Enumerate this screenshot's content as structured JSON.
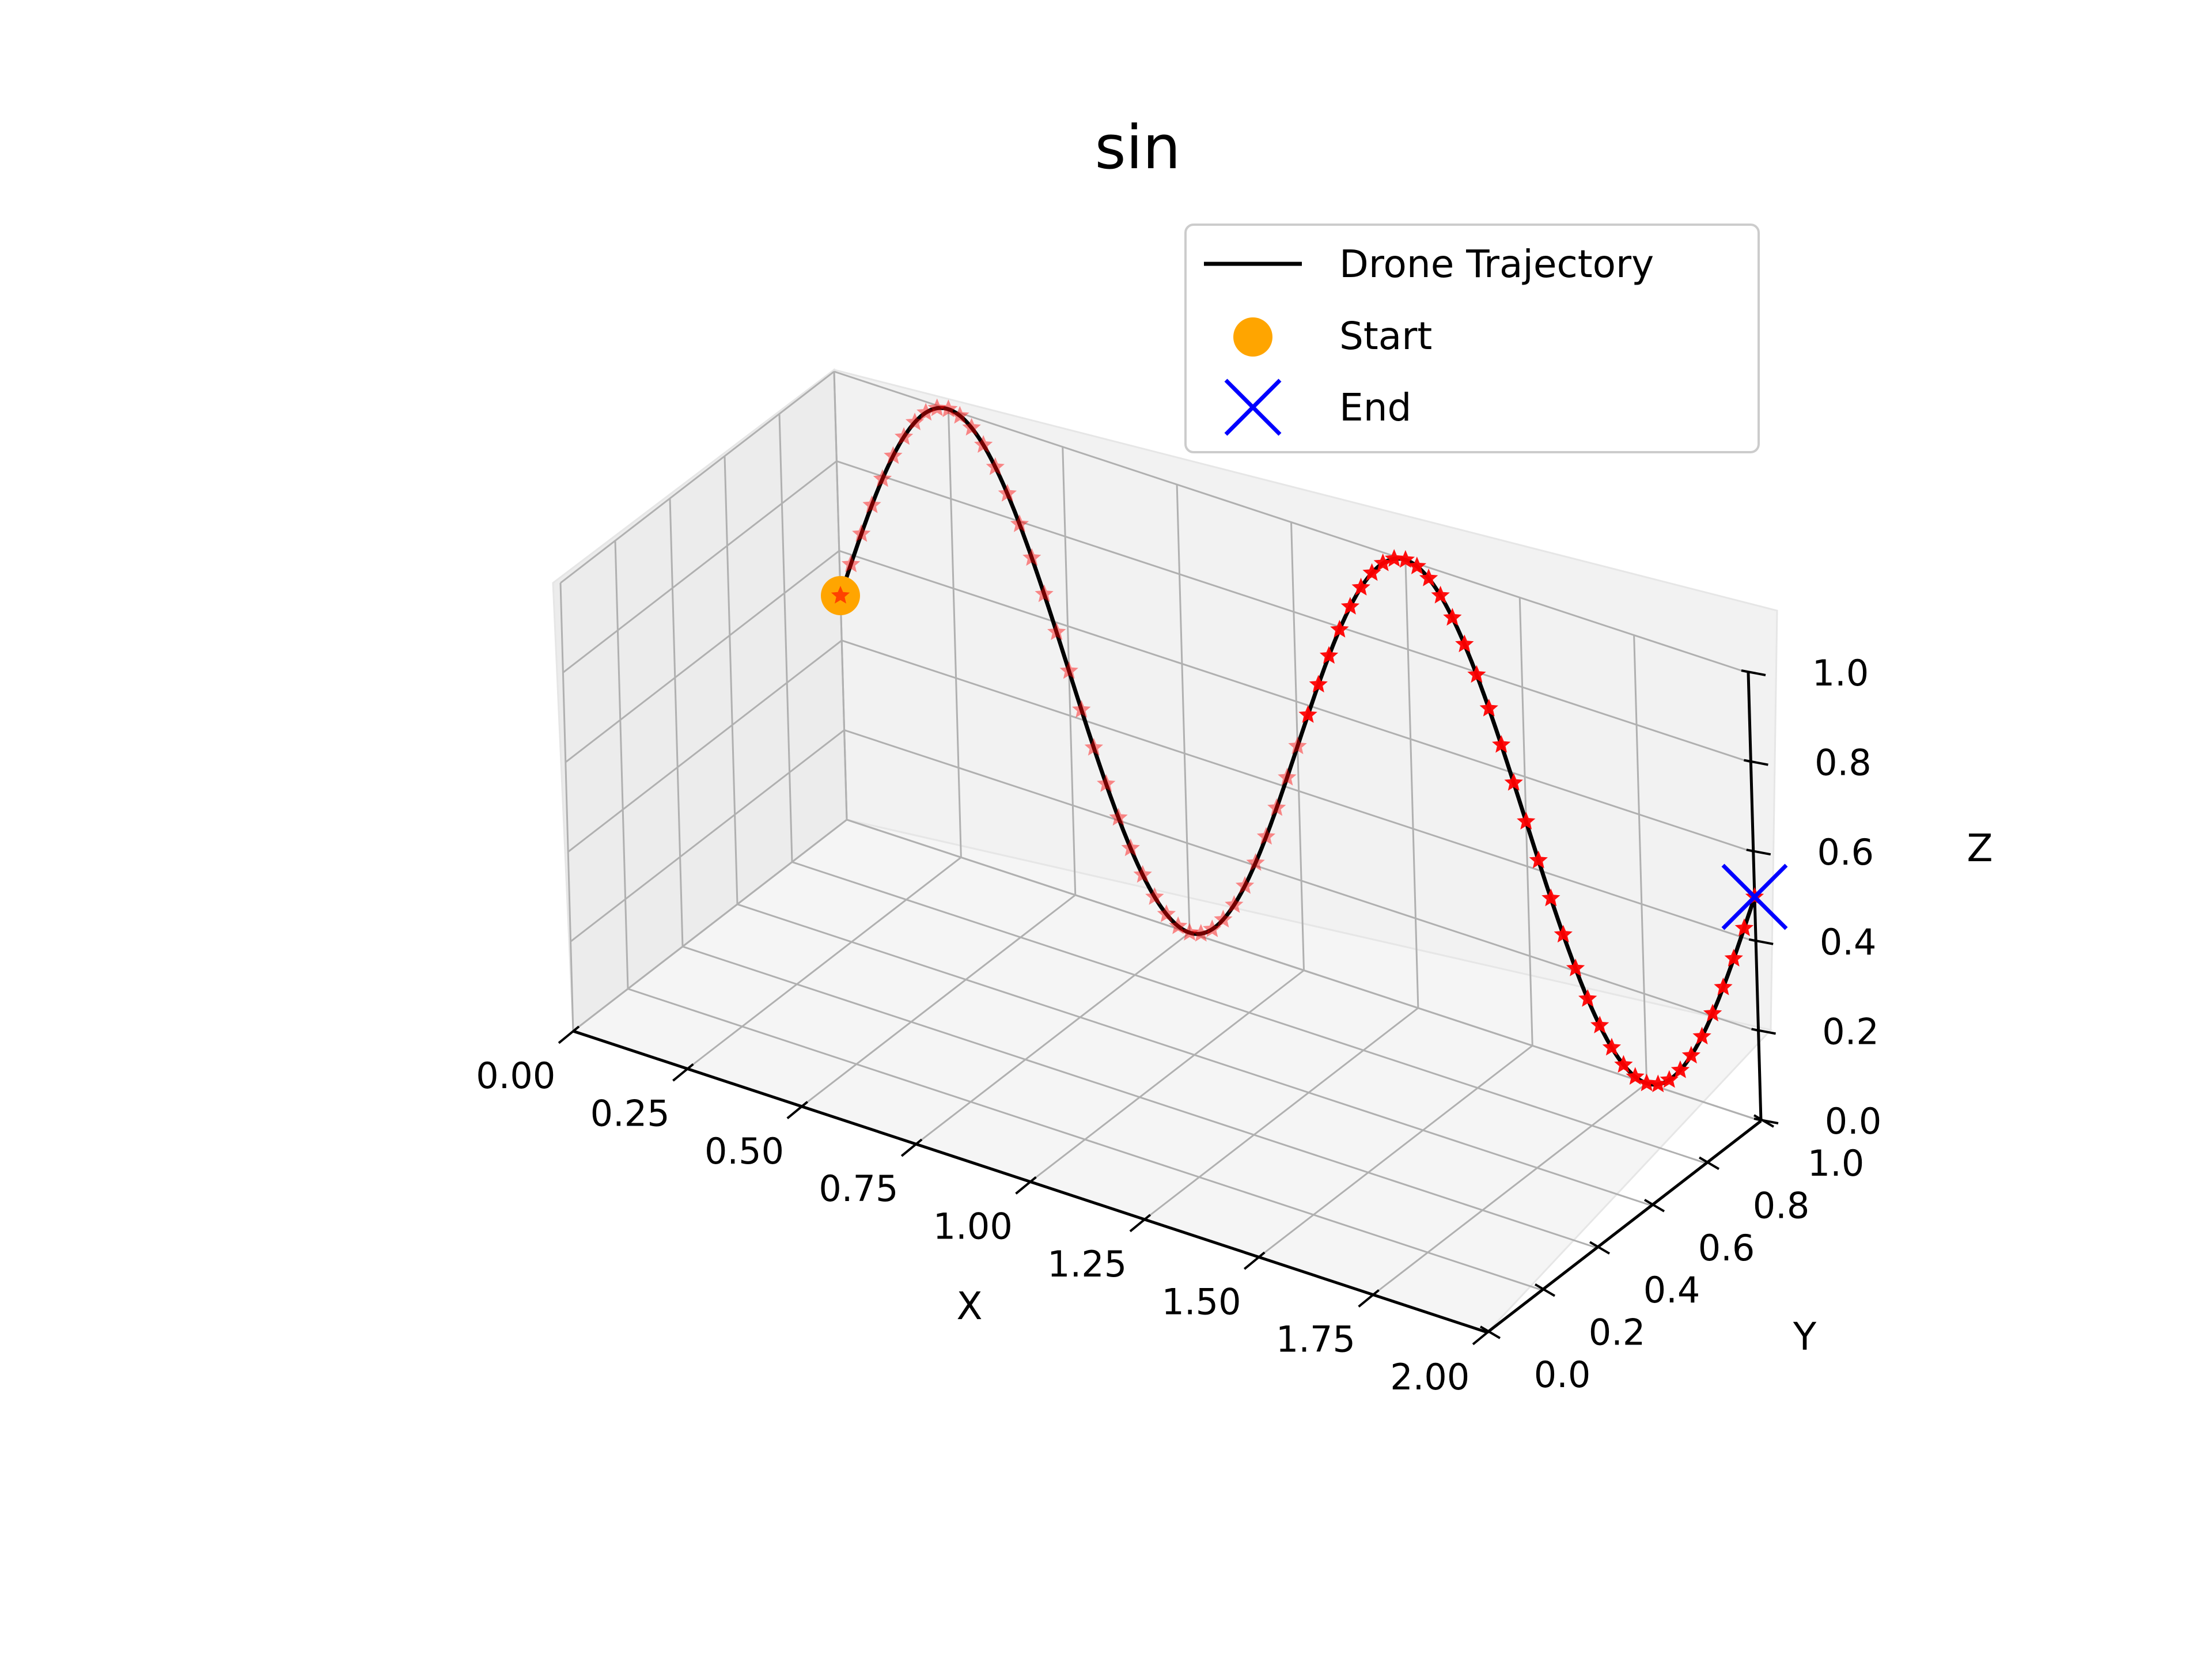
{
  "chart_data": {
    "type": "line3d",
    "title": "sin",
    "xlabel": "X",
    "ylabel": "Y",
    "zlabel": "Z",
    "xlim": [
      0,
      2
    ],
    "ylim": [
      0,
      1
    ],
    "zlim": [
      0,
      1
    ],
    "x_ticks": [
      "0.00",
      "0.25",
      "0.50",
      "0.75",
      "1.00",
      "1.25",
      "1.50",
      "1.75",
      "2.00"
    ],
    "y_ticks": [
      "0.0",
      "0.2",
      "0.4",
      "0.6",
      "0.8",
      "1.0"
    ],
    "z_ticks": [
      "0.0",
      "0.2",
      "0.4",
      "0.6",
      "0.8",
      "1.0"
    ],
    "grid": true,
    "legend": {
      "placement": "upper-right",
      "entries": [
        {
          "label": "Drone Trajectory",
          "marker": "line",
          "color": "#000000"
        },
        {
          "label": "Start",
          "marker": "circle",
          "color": "#ffa500"
        },
        {
          "label": "End",
          "marker": "x",
          "color": "#0000ff"
        }
      ]
    },
    "trajectory": {
      "name": "Drone Trajectory",
      "color": "#000000",
      "marker_color": "#ff0000",
      "x_range": [
        0,
        2
      ],
      "y_constant": 1,
      "z_formula": "0.5 + 0.5*sin(2*pi*x)",
      "samples": 81
    },
    "start": {
      "name": "Start",
      "x": 0,
      "y": 1,
      "z": 0.5,
      "color": "#ffa500"
    },
    "end": {
      "name": "End",
      "x": 2,
      "y": 1,
      "z": 0.5,
      "color": "#0000ff"
    }
  }
}
